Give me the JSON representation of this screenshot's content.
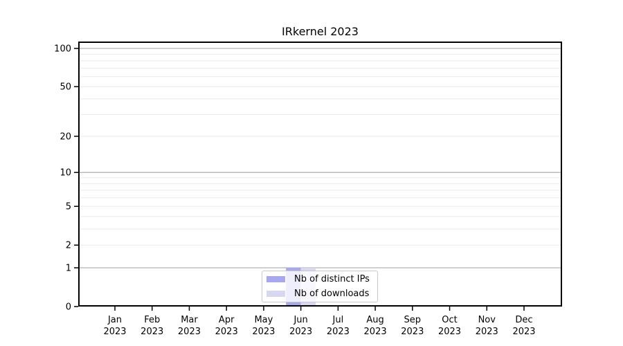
{
  "chart_data": {
    "type": "bar",
    "title": "IRkernel 2023",
    "categories": [
      "Jan",
      "Feb",
      "Mar",
      "Apr",
      "May",
      "Jun",
      "Jul",
      "Aug",
      "Sep",
      "Oct",
      "Nov",
      "Dec"
    ],
    "xtick_second_line": "2023",
    "series": [
      {
        "name": "Nb of distinct IPs",
        "color": "#a8a8ee",
        "values": [
          0,
          0,
          0,
          0,
          0,
          1,
          0,
          0,
          0,
          0,
          0,
          0
        ]
      },
      {
        "name": "Nb of downloads",
        "color": "#d7d7f2",
        "values": [
          0,
          0,
          0,
          0,
          0,
          1,
          0,
          0,
          0,
          0,
          0,
          0
        ]
      }
    ],
    "yscale": "log1p",
    "yticks": [
      0,
      1,
      2,
      5,
      10,
      20,
      50,
      100
    ],
    "major_gridlines": [
      1,
      10,
      100
    ],
    "minor_gridlines": [
      2,
      3,
      4,
      5,
      6,
      7,
      8,
      9,
      20,
      30,
      40,
      50,
      60,
      70,
      80,
      90
    ],
    "ylim": [
      0,
      113
    ],
    "grid": "horizontal",
    "legend_position": "bottom-center",
    "colors": {
      "major_grid": "#b3b3b3",
      "minor_grid": "#eaeaea",
      "spine": "#000000",
      "text": "#000000",
      "legend_border": "#c9c9c9"
    }
  }
}
